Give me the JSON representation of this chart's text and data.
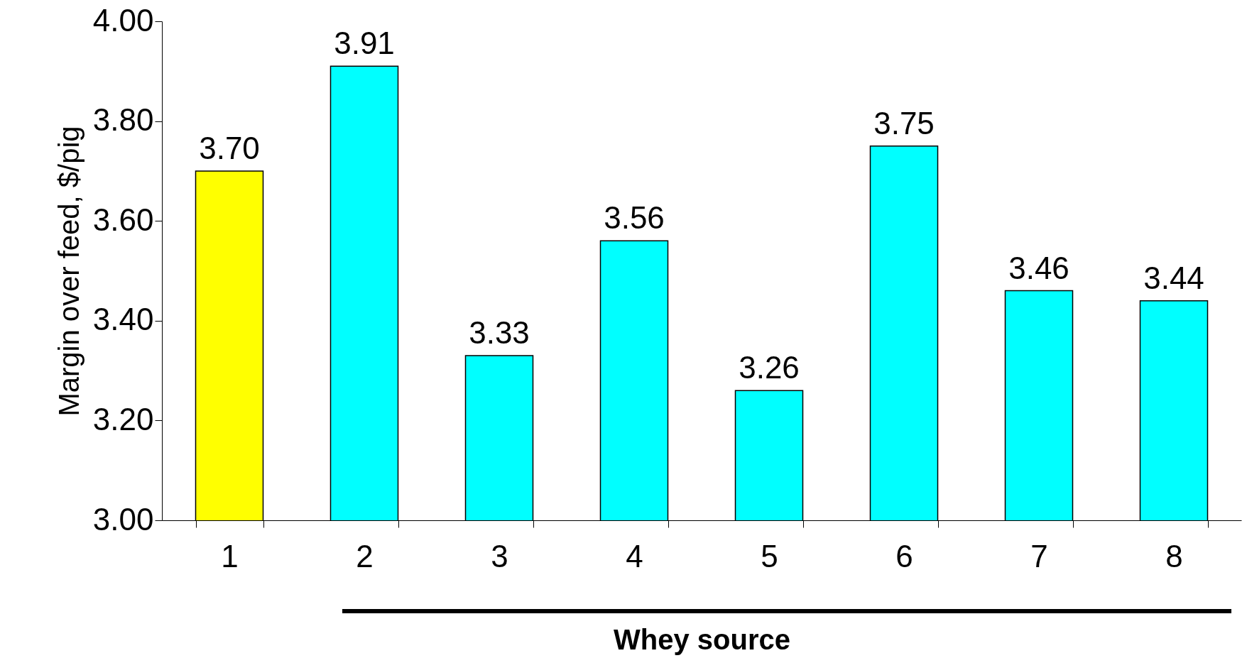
{
  "chart_data": {
    "type": "bar",
    "xlabel": "Whey source",
    "ylabel": "Margin over feed, $/pig",
    "categories": [
      "1",
      "2",
      "3",
      "4",
      "5",
      "6",
      "7",
      "8"
    ],
    "values": [
      3.7,
      3.91,
      3.33,
      3.56,
      3.26,
      3.75,
      3.46,
      3.44
    ],
    "value_labels": [
      "3.70",
      "3.91",
      "3.33",
      "3.56",
      "3.26",
      "3.75",
      "3.46",
      "3.44"
    ],
    "colors": [
      "#ffff00",
      "#00ffff",
      "#00ffff",
      "#00ffff",
      "#00ffff",
      "#00ffff",
      "#00ffff",
      "#00ffff"
    ],
    "ylim": [
      3,
      4
    ],
    "yticks": [
      {
        "value": 3,
        "label": "3.00"
      },
      {
        "value": 3.2,
        "label": "3.20"
      },
      {
        "value": 3.4,
        "label": "3.40"
      },
      {
        "value": 3.6,
        "label": "3.60"
      },
      {
        "value": 3.8,
        "label": "3.80"
      },
      {
        "value": 4,
        "label": "4.00"
      }
    ],
    "grid": false,
    "legend": false
  }
}
